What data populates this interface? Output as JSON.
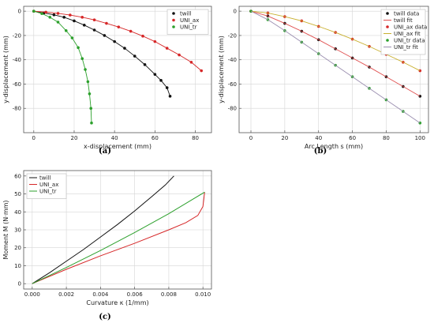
{
  "colors": {
    "twill": "#111111",
    "uni_ax": "#d62728",
    "uni_tr": "#2ca02c",
    "uni_ax_fit": "#c9b030",
    "uni_tr_fit": "#9b8fb0",
    "twill_fit": "#e05050"
  },
  "chart_data": [
    {
      "id": "a",
      "caption": "(a)",
      "type": "scatter",
      "xlabel": "x-displacement (mm)",
      "ylabel": "y-displacement (mm)",
      "xlim": [
        -5,
        88
      ],
      "ylim": [
        -100,
        4
      ],
      "xticks": [
        0,
        20,
        40,
        60,
        80
      ],
      "yticks": [
        0,
        -20,
        -40,
        -60,
        -80
      ],
      "grid": true,
      "legend_position": "top-right",
      "series": [
        {
          "name": "twill",
          "color_key": "twill",
          "lines": true,
          "x": [
            0,
            5,
            10,
            15,
            20,
            25,
            30,
            35,
            40,
            45,
            50,
            55,
            60,
            63,
            66,
            67.5
          ],
          "y": [
            0,
            -1.5,
            -3,
            -5,
            -8,
            -11.5,
            -15.5,
            -20,
            -25,
            -30.5,
            -37,
            -44,
            -52,
            -57,
            -63,
            -70
          ]
        },
        {
          "name": "UNI_ax",
          "color_key": "uni_ax",
          "lines": true,
          "x": [
            0,
            6,
            12,
            18,
            24,
            30,
            36,
            42,
            48,
            54,
            60,
            66,
            72,
            78,
            83
          ],
          "y": [
            0,
            -0.8,
            -1.8,
            -3.2,
            -5,
            -7.2,
            -10,
            -13,
            -16.5,
            -20.5,
            -25,
            -30.5,
            -36,
            -42,
            -49
          ]
        },
        {
          "name": "UNI_tr",
          "color_key": "uni_tr",
          "lines": true,
          "x": [
            0,
            4,
            8,
            12,
            16,
            19,
            22,
            24,
            25.5,
            26.8,
            27.6,
            28.3,
            28.6
          ],
          "y": [
            0,
            -2,
            -5,
            -9,
            -16,
            -22,
            -30,
            -39,
            -48,
            -58,
            -68,
            -80,
            -92
          ]
        }
      ]
    },
    {
      "id": "b",
      "caption": "(b)",
      "type": "scatter",
      "xlabel": "Arc Length s (mm)",
      "ylabel": "y-displacement (mm)",
      "xlim": [
        -7,
        105
      ],
      "ylim": [
        -100,
        4
      ],
      "xticks": [
        0,
        20,
        40,
        60,
        80,
        100
      ],
      "yticks": [
        0,
        -20,
        -40,
        -60,
        -80
      ],
      "grid": true,
      "legend_position": "top-right",
      "series": [
        {
          "name": "twill data",
          "color_key": "twill",
          "kind": "points",
          "x": [
            0,
            10,
            20,
            30,
            40,
            50,
            60,
            70,
            80,
            90,
            100
          ],
          "y": [
            0,
            -4,
            -10,
            -16.5,
            -23.5,
            -31,
            -38.5,
            -46,
            -54,
            -62,
            -70
          ]
        },
        {
          "name": "twill fit",
          "color_key": "twill_fit",
          "kind": "line",
          "x": [
            0,
            10,
            20,
            30,
            40,
            50,
            60,
            70,
            80,
            90,
            100
          ],
          "y": [
            0,
            -4,
            -10,
            -16.5,
            -23.5,
            -31,
            -38.5,
            -46,
            -54,
            -62,
            -70
          ]
        },
        {
          "name": "UNI_ax data",
          "color_key": "uni_ax",
          "kind": "points",
          "x": [
            0,
            10,
            20,
            30,
            40,
            50,
            60,
            70,
            80,
            90,
            100
          ],
          "y": [
            0,
            -1.5,
            -4.5,
            -8,
            -12.5,
            -17.5,
            -23,
            -29,
            -35.5,
            -42,
            -49
          ]
        },
        {
          "name": "UNI_ax fit",
          "color_key": "uni_ax_fit",
          "kind": "line",
          "x": [
            0,
            10,
            20,
            30,
            40,
            50,
            60,
            70,
            80,
            90,
            100
          ],
          "y": [
            0,
            -1.5,
            -4.5,
            -8,
            -12.5,
            -17.5,
            -23,
            -29,
            -35.5,
            -42,
            -49
          ]
        },
        {
          "name": "UNI_tr data",
          "color_key": "uni_tr",
          "kind": "points",
          "x": [
            0,
            10,
            20,
            30,
            40,
            50,
            60,
            70,
            80,
            90,
            100
          ],
          "y": [
            0,
            -7,
            -16,
            -25.5,
            -35,
            -44.5,
            -54,
            -63.5,
            -73,
            -82.5,
            -92
          ]
        },
        {
          "name": "UNI_tr fit",
          "color_key": "uni_tr_fit",
          "kind": "line",
          "x": [
            0,
            10,
            20,
            30,
            40,
            50,
            60,
            70,
            80,
            90,
            100
          ],
          "y": [
            0,
            -7,
            -16,
            -25.5,
            -35,
            -44.5,
            -54,
            -63.5,
            -73,
            -82.5,
            -92
          ]
        }
      ]
    },
    {
      "id": "c",
      "caption": "(c)",
      "type": "line",
      "xlabel": "Curvature κ (1/mm)",
      "ylabel": "Moment M (N·mm)",
      "xlim": [
        -0.0005,
        0.0105
      ],
      "ylim": [
        -3,
        63
      ],
      "xticks": [
        0.0,
        0.002,
        0.004,
        0.006,
        0.008,
        0.01
      ],
      "xtick_labels": [
        "0.000",
        "0.002",
        "0.004",
        "0.006",
        "0.008",
        "0.010"
      ],
      "yticks": [
        0,
        10,
        20,
        30,
        40,
        50,
        60
      ],
      "grid": true,
      "legend_position": "top-left",
      "series": [
        {
          "name": "twill",
          "color_key": "twill",
          "x": [
            0,
            0.001,
            0.002,
            0.003,
            0.004,
            0.005,
            0.006,
            0.007,
            0.0078,
            0.0083
          ],
          "y": [
            0,
            6,
            12.5,
            19,
            26,
            33,
            40.5,
            48.5,
            55,
            60
          ]
        },
        {
          "name": "UNI_ax",
          "color_key": "uni_ax",
          "x": [
            0,
            0.002,
            0.004,
            0.006,
            0.008,
            0.009,
            0.0097,
            0.01,
            0.0101
          ],
          "y": [
            0,
            8,
            15.5,
            22.5,
            30,
            34,
            38,
            43,
            51
          ]
        },
        {
          "name": "UNI_tr",
          "color_key": "uni_tr",
          "x": [
            0,
            0.002,
            0.004,
            0.006,
            0.008,
            0.0101
          ],
          "y": [
            0,
            9,
            18.5,
            28.5,
            39,
            51
          ]
        }
      ]
    }
  ]
}
